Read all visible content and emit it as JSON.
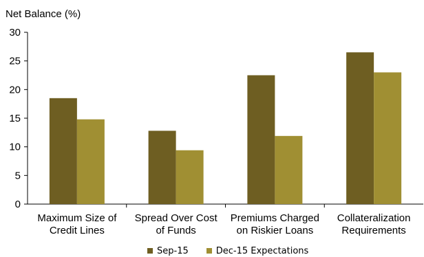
{
  "chart_data": {
    "type": "bar",
    "ylabel": "Net Balance (%)",
    "xlabel": "",
    "categories": [
      [
        "Maximum Size of",
        "Credit Lines"
      ],
      [
        "Spread Over Cost",
        "of Funds"
      ],
      [
        "Premiums Charged",
        "on Riskier Loans"
      ],
      [
        "Collateralization",
        "Requirements"
      ]
    ],
    "series": [
      {
        "name": "Sep-15",
        "values": [
          18.5,
          12.8,
          22.5,
          26.5
        ],
        "color": "#6e5e22"
      },
      {
        "name": "Dec-15 Expectations",
        "values": [
          14.8,
          9.4,
          11.9,
          23.0
        ],
        "color": "#a08f33"
      }
    ],
    "ylim": [
      0,
      30
    ],
    "yticks": [
      0,
      5,
      10,
      15,
      20,
      25,
      30
    ],
    "grid": false,
    "legend_position": "bottom"
  }
}
